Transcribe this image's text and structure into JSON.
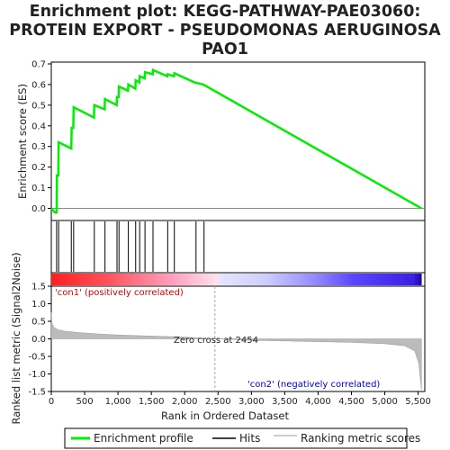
{
  "title_line1": "Enrichment plot: KEGG-PATHWAY-PAE03060:",
  "title_line2": "PROTEIN EXPORT - PSEUDOMONAS AERUGINOSA",
  "title_line3": "PAO1",
  "colors": {
    "es_line": "#00ee00",
    "hits": "#000000",
    "ranked_fill": "#bbbbbb",
    "zero_cross_line": "#aaaaaa",
    "pos_label": "#cc0000",
    "neg_label": "#0000cc",
    "heat_red": "#ff2020",
    "heat_pink": "#ffc0d8",
    "heat_lav": "#d8d8ff",
    "heat_blue": "#4a3dff",
    "heat_navy": "#1a00a0"
  },
  "chart_data": [
    {
      "type": "line",
      "name": "enrichment-profile",
      "ylabel": "Enrichment score (ES)",
      "xlim": [
        0,
        5600
      ],
      "ylim": [
        -0.05,
        0.7
      ],
      "yticks": [
        0.0,
        0.1,
        0.2,
        0.3,
        0.4,
        0.5,
        0.6,
        0.7
      ],
      "ytick_labels": [
        "0.0",
        "0.1",
        "0.2",
        "0.3",
        "0.4",
        "0.5",
        "0.6",
        "0.7"
      ],
      "points": [
        [
          0,
          0.0
        ],
        [
          55,
          -0.02
        ],
        [
          80,
          -0.02
        ],
        [
          85,
          0.16
        ],
        [
          105,
          0.16
        ],
        [
          110,
          0.32
        ],
        [
          300,
          0.29
        ],
        [
          305,
          0.39
        ],
        [
          330,
          0.39
        ],
        [
          335,
          0.49
        ],
        [
          640,
          0.44
        ],
        [
          645,
          0.5
        ],
        [
          800,
          0.48
        ],
        [
          805,
          0.53
        ],
        [
          980,
          0.5
        ],
        [
          985,
          0.54
        ],
        [
          1010,
          0.54
        ],
        [
          1015,
          0.59
        ],
        [
          1150,
          0.57
        ],
        [
          1155,
          0.6
        ],
        [
          1260,
          0.58
        ],
        [
          1265,
          0.62
        ],
        [
          1320,
          0.61
        ],
        [
          1325,
          0.64
        ],
        [
          1400,
          0.63
        ],
        [
          1405,
          0.66
        ],
        [
          1520,
          0.65
        ],
        [
          1525,
          0.67
        ],
        [
          1740,
          0.64
        ],
        [
          1745,
          0.65
        ],
        [
          1840,
          0.64
        ],
        [
          1845,
          0.655
        ],
        [
          2150,
          0.61
        ],
        [
          2280,
          0.6
        ],
        [
          5550,
          0.0
        ]
      ]
    },
    {
      "type": "hits",
      "name": "hits",
      "hit_positions": [
        80,
        110,
        300,
        335,
        645,
        805,
        985,
        1015,
        1155,
        1265,
        1325,
        1405,
        1525,
        1745,
        1845,
        2170,
        2290
      ]
    },
    {
      "type": "area",
      "name": "ranked-list-metric",
      "ylabel": "Ranked list metric (Signal2Noise)",
      "xlabel": "Rank in Ordered Dataset",
      "xlim": [
        0,
        5600
      ],
      "ylim": [
        -1.5,
        1.5
      ],
      "xticks": [
        0,
        500,
        1000,
        1500,
        2000,
        2500,
        3000,
        3500,
        4000,
        4500,
        5000,
        5500
      ],
      "xtick_labels": [
        "0",
        "500",
        "1,000",
        "1,500",
        "2,000",
        "2,500",
        "3,000",
        "3,500",
        "4,000",
        "4,500",
        "5,000",
        "5,500"
      ],
      "yticks": [
        -1.5,
        -1.0,
        -0.5,
        0.0,
        0.5,
        1.0,
        1.5
      ],
      "ytick_labels": [
        "-1.5",
        "-1.0",
        "-0.5",
        "0.0",
        "0.5",
        "1.0",
        "1.5"
      ],
      "points": [
        [
          0,
          0.75
        ],
        [
          10,
          0.45
        ],
        [
          40,
          0.33
        ],
        [
          100,
          0.26
        ],
        [
          200,
          0.22
        ],
        [
          400,
          0.18
        ],
        [
          700,
          0.14
        ],
        [
          1000,
          0.11
        ],
        [
          1500,
          0.08
        ],
        [
          2000,
          0.05
        ],
        [
          2454,
          0.0
        ],
        [
          3000,
          -0.04
        ],
        [
          3500,
          -0.06
        ],
        [
          4000,
          -0.08
        ],
        [
          4500,
          -0.1
        ],
        [
          5000,
          -0.14
        ],
        [
          5300,
          -0.2
        ],
        [
          5450,
          -0.35
        ],
        [
          5510,
          -0.7
        ],
        [
          5550,
          -1.45
        ]
      ],
      "zero_cross": 2454,
      "zero_cross_label": "Zero cross at 2454",
      "pos_label": "'con1' (positively correlated)",
      "neg_label": "'con2' (negatively correlated)"
    }
  ],
  "legend": {
    "items": [
      {
        "label": "Enrichment profile",
        "color": "#00ee00",
        "kind": "thick"
      },
      {
        "label": "Hits",
        "color": "#000000",
        "kind": "thin"
      },
      {
        "label": "Ranking metric scores",
        "color": "#bbbbbb",
        "kind": "thin"
      }
    ]
  }
}
